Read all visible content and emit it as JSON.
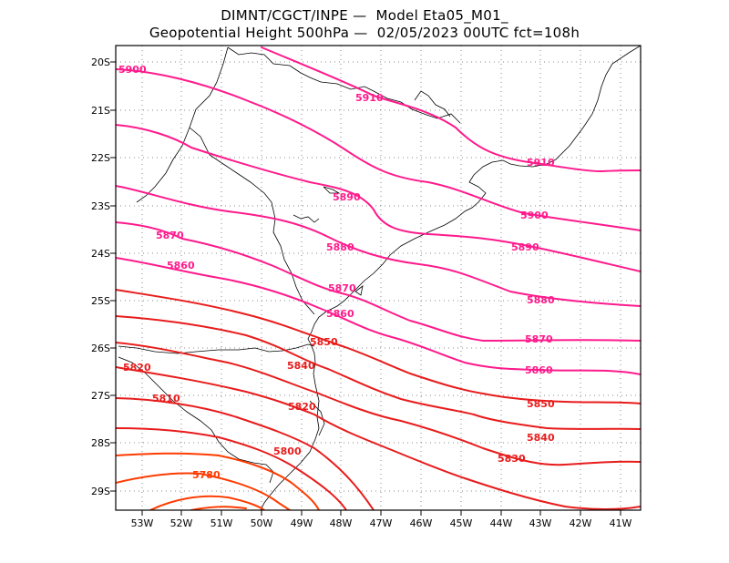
{
  "title_line1": "DIMNT/CGCT/INPE —  Model Eta05_M01_",
  "title_line2": "Geopotential Height 500hPa —  02/05/2023 00UTC fct=108h",
  "colors": {
    "magenta": "#ff1a8c",
    "red": "#e81c1c",
    "orange_red": "#ff3b00",
    "coast": "#000000",
    "grid": "#888888"
  },
  "lat_labels": [
    "20S",
    "21S",
    "22S",
    "23S",
    "24S",
    "25S",
    "26S",
    "27S",
    "28S",
    "29S"
  ],
  "lon_labels": [
    "53W",
    "52W",
    "51W",
    "50W",
    "49W",
    "48W",
    "47W",
    "46W",
    "45W",
    "44W",
    "43W",
    "42W",
    "41W"
  ],
  "contours": [
    {
      "value": 5910,
      "labels": [
        "5910",
        "5910"
      ],
      "color": "magenta"
    },
    {
      "value": 5900,
      "labels": [
        "5900",
        "5900"
      ],
      "color": "magenta"
    },
    {
      "value": 5890,
      "labels": [
        "5890",
        "5890"
      ],
      "color": "magenta"
    },
    {
      "value": 5880,
      "labels": [
        "5880",
        "5880"
      ],
      "color": "magenta"
    },
    {
      "value": 5870,
      "labels": [
        "5870",
        "5870",
        "5870"
      ],
      "color": "magenta"
    },
    {
      "value": 5860,
      "labels": [
        "5860",
        "5860",
        "5860"
      ],
      "color": "magenta"
    },
    {
      "value": 5850,
      "labels": [
        "5850",
        "5850"
      ],
      "color": "red"
    },
    {
      "value": 5840,
      "labels": [
        "5840",
        "5840"
      ],
      "color": "red"
    },
    {
      "value": 5830,
      "labels": [
        "5830"
      ],
      "color": "red"
    },
    {
      "value": 5820,
      "labels": [
        "5820",
        "5820"
      ],
      "color": "red"
    },
    {
      "value": 5810,
      "labels": [
        "5810"
      ],
      "color": "red"
    },
    {
      "value": 5800,
      "labels": [
        "5800"
      ],
      "color": "red"
    },
    {
      "value": 5780,
      "labels": [
        "5780"
      ],
      "color": "orange_red"
    }
  ]
}
